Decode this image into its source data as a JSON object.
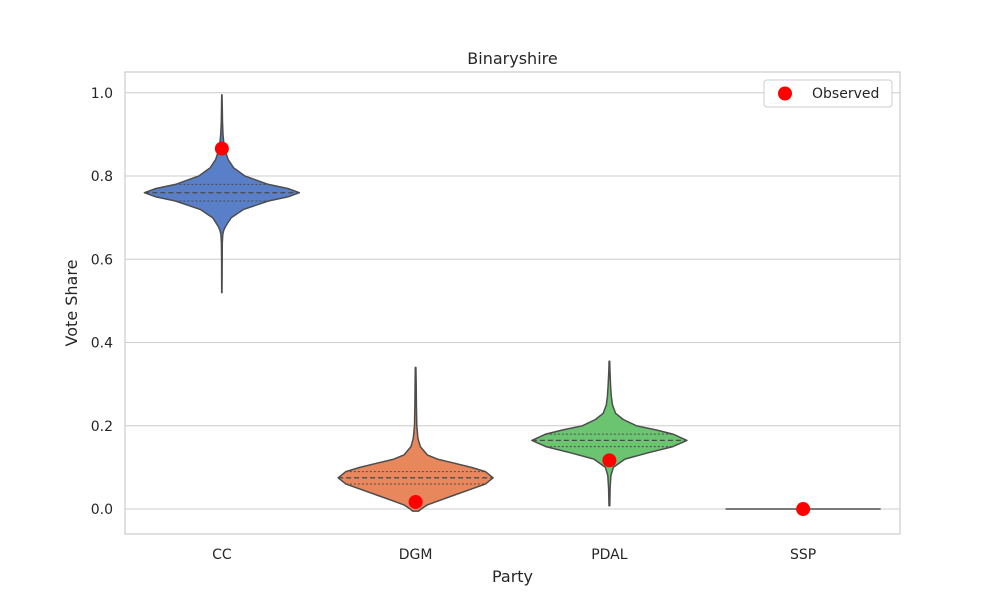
{
  "chart_data": {
    "type": "violin",
    "title": "Binaryshire",
    "xlabel": "Party",
    "ylabel": "Vote Share",
    "categories": [
      "CC",
      "DGM",
      "PDAL",
      "SSP"
    ],
    "ylim": [
      -0.06,
      1.05
    ],
    "yticks": [
      0.0,
      0.2,
      0.4,
      0.6,
      0.8,
      1.0
    ],
    "ytick_labels": [
      "0.0",
      "0.2",
      "0.4",
      "0.6",
      "0.8",
      "1.0"
    ],
    "grid": "horizontal",
    "legend": {
      "position": "top-right",
      "entries": [
        "Observed"
      ]
    },
    "colors": {
      "CC": "#5a7fc9",
      "DGM": "#e8875b",
      "PDAL": "#6bc46f",
      "SSP": "#5a7fc9",
      "observed": "#ff0000",
      "outline": "#4d4d4d",
      "grid": "#cccccc"
    },
    "series": [
      {
        "category": "CC",
        "min": 0.52,
        "max": 0.995,
        "quartiles": [
          0.74,
          0.76,
          0.78
        ],
        "observed": 0.866,
        "profile": [
          [
            0.52,
            0.002
          ],
          [
            0.6,
            0.004
          ],
          [
            0.64,
            0.006
          ],
          [
            0.66,
            0.012
          ],
          [
            0.67,
            0.025
          ],
          [
            0.68,
            0.05
          ],
          [
            0.7,
            0.12
          ],
          [
            0.72,
            0.28
          ],
          [
            0.74,
            0.6
          ],
          [
            0.75,
            0.85
          ],
          [
            0.76,
            1.0
          ],
          [
            0.77,
            0.85
          ],
          [
            0.78,
            0.6
          ],
          [
            0.8,
            0.3
          ],
          [
            0.82,
            0.15
          ],
          [
            0.84,
            0.08
          ],
          [
            0.86,
            0.045
          ],
          [
            0.88,
            0.025
          ],
          [
            0.9,
            0.015
          ],
          [
            0.93,
            0.008
          ],
          [
            0.96,
            0.005
          ],
          [
            0.995,
            0.002
          ]
        ]
      },
      {
        "category": "DGM",
        "min": -0.005,
        "max": 0.34,
        "quartiles": [
          0.06,
          0.075,
          0.09
        ],
        "observed": 0.017,
        "profile": [
          [
            -0.005,
            0.04
          ],
          [
            0.0,
            0.07
          ],
          [
            0.01,
            0.15
          ],
          [
            0.02,
            0.3
          ],
          [
            0.03,
            0.45
          ],
          [
            0.05,
            0.75
          ],
          [
            0.06,
            0.9
          ],
          [
            0.075,
            1.0
          ],
          [
            0.09,
            0.9
          ],
          [
            0.1,
            0.72
          ],
          [
            0.11,
            0.5
          ],
          [
            0.12,
            0.28
          ],
          [
            0.13,
            0.15
          ],
          [
            0.15,
            0.06
          ],
          [
            0.17,
            0.03
          ],
          [
            0.2,
            0.015
          ],
          [
            0.25,
            0.01
          ],
          [
            0.3,
            0.007
          ],
          [
            0.34,
            0.004
          ]
        ]
      },
      {
        "category": "PDAL",
        "min": 0.008,
        "max": 0.355,
        "quartiles": [
          0.15,
          0.165,
          0.18
        ],
        "observed": 0.117,
        "profile": [
          [
            0.008,
            0.005
          ],
          [
            0.05,
            0.01
          ],
          [
            0.08,
            0.02
          ],
          [
            0.1,
            0.05
          ],
          [
            0.12,
            0.2
          ],
          [
            0.135,
            0.5
          ],
          [
            0.15,
            0.82
          ],
          [
            0.165,
            1.0
          ],
          [
            0.18,
            0.82
          ],
          [
            0.19,
            0.6
          ],
          [
            0.2,
            0.35
          ],
          [
            0.215,
            0.18
          ],
          [
            0.23,
            0.08
          ],
          [
            0.25,
            0.04
          ],
          [
            0.27,
            0.025
          ],
          [
            0.3,
            0.015
          ],
          [
            0.33,
            0.008
          ],
          [
            0.355,
            0.004
          ]
        ]
      },
      {
        "category": "SSP",
        "min": 0.0,
        "max": 0.0,
        "quartiles": [
          0.0,
          0.0,
          0.0
        ],
        "observed": 0.0,
        "flat": true
      }
    ]
  }
}
